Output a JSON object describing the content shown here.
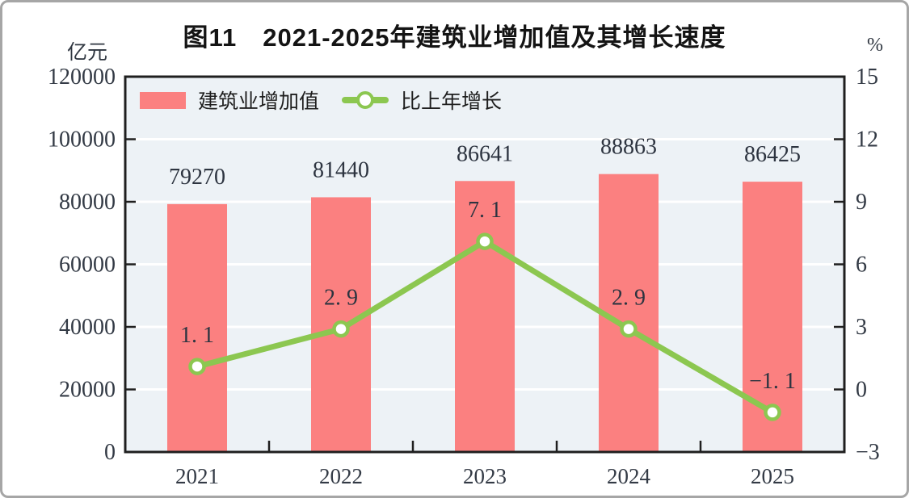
{
  "figure": {
    "title": "图11　2021-2025年建筑业增加值及其增长速度",
    "left_axis_unit": "亿元",
    "right_axis_unit": "%"
  },
  "colors": {
    "bar": "#fb8080",
    "line": "#8cc750",
    "marker_fill": "#ffffff",
    "plot_background": "#edf2f6",
    "gridline": "#ffffff",
    "axis_frame": "#1f1f1f",
    "text": "#333a45",
    "card_border": "#a6a6a6"
  },
  "legend": [
    {
      "label": "建筑业增加值",
      "type": "bar",
      "color": "#fb8080"
    },
    {
      "label": "比上年增长",
      "type": "line",
      "color": "#8cc750"
    }
  ],
  "chart_data": {
    "type": "bar+line combo",
    "title": "图11　2021-2025年建筑业增加值及其增长速度",
    "categories": [
      "2021",
      "2022",
      "2023",
      "2024",
      "2025"
    ],
    "series": [
      {
        "name": "建筑业增加值",
        "type": "bar",
        "axis": "left",
        "color": "#fb8080",
        "values": [
          79270,
          81440,
          86641,
          88863,
          86425
        ],
        "labels": [
          "79270",
          "81440",
          "86641",
          "88863",
          "86425"
        ]
      },
      {
        "name": "比上年增长",
        "type": "line",
        "axis": "right",
        "color": "#8cc750",
        "values": [
          1.1,
          2.9,
          7.1,
          2.9,
          -1.1
        ],
        "labels": [
          "1. 1",
          "2. 9",
          "7. 1",
          "2. 9",
          "−1. 1"
        ]
      }
    ],
    "left_axis": {
      "unit": "亿元",
      "min": 0,
      "max": 120000,
      "tick_step": 20000,
      "ticks": [
        "0",
        "20000",
        "40000",
        "60000",
        "80000",
        "100000",
        "120000"
      ]
    },
    "right_axis": {
      "unit": "%",
      "min": -3,
      "max": 15,
      "tick_step": 3,
      "ticks": [
        "-3",
        "0",
        "3",
        "6",
        "9",
        "12",
        "15"
      ]
    },
    "grid": "horizontal white gridlines on light blue-gray plot area",
    "legend_position": "top-left inside plot"
  }
}
